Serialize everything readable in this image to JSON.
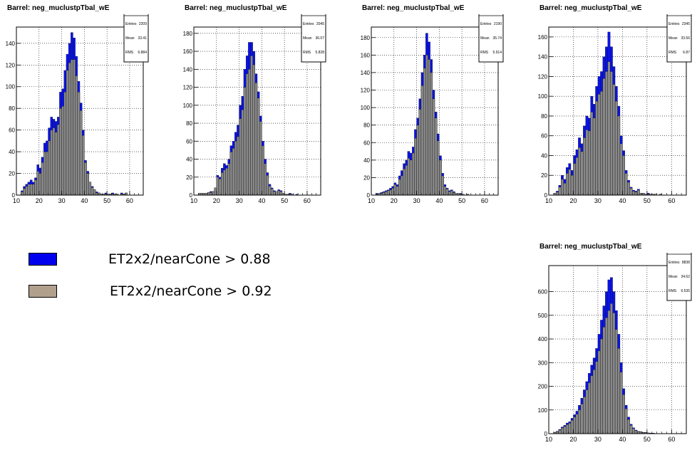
{
  "legend": {
    "items": [
      {
        "label": "ET2x2/nearCone > 0.88",
        "color": "#0000ee"
      },
      {
        "label": "ET2x2/nearCone > 0.92",
        "color": "#b0a08c"
      }
    ]
  },
  "colors": {
    "blue_fill": "#0a14e6",
    "gray_fill": "#888888",
    "frame": "#000000",
    "grid": "#000000"
  },
  "chart_data": [
    {
      "type": "bar",
      "title": "Barrel: neg_muclustpTbal_wE",
      "stats": {
        "name": "neg_muclustpTbal_wE",
        "entries_label": "Entries",
        "entries": "2209",
        "mean_label": "Mean",
        "mean": "33.41",
        "rms_label": "RMS",
        "rms": "6.884"
      },
      "xlim": [
        10,
        66
      ],
      "ylim": [
        0,
        155
      ],
      "xticks": [
        "10",
        "20",
        "30",
        "40",
        "50",
        "60"
      ],
      "yticks": [
        "0",
        "20",
        "40",
        "60",
        "80",
        "100",
        "120",
        "140"
      ],
      "bin_width": 1,
      "x_start": 12,
      "series": [
        {
          "values": [
            4,
            8,
            10,
            12,
            14,
            12,
            16,
            28,
            25,
            35,
            48,
            50,
            62,
            72,
            70,
            68,
            72,
            95,
            98,
            115,
            130,
            140,
            150,
            145,
            128,
            105,
            85,
            60,
            32,
            22,
            12,
            8,
            5,
            3,
            2,
            1,
            1,
            2,
            1,
            1,
            2,
            1,
            1,
            0,
            2,
            1,
            2
          ]
        },
        {
          "values": [
            3,
            6,
            8,
            10,
            10,
            10,
            14,
            22,
            20,
            30,
            40,
            40,
            50,
            60,
            62,
            58,
            65,
            80,
            82,
            95,
            115,
            122,
            125,
            125,
            110,
            95,
            78,
            55,
            30,
            20,
            12,
            7,
            5,
            2,
            2,
            1,
            1,
            1,
            1,
            1,
            1,
            1,
            1,
            0,
            1,
            1,
            2
          ]
        }
      ]
    },
    {
      "type": "bar",
      "title": "Barrel: neg_muclustpTbal_wE",
      "stats": {
        "name": "neg_muclustpTbal_wE",
        "entries_label": "Entries",
        "entries": "2045",
        "mean_label": "Mean",
        "mean": "36.07",
        "rms_label": "RMS",
        "rms": "5.828"
      },
      "xlim": [
        10,
        66
      ],
      "ylim": [
        0,
        187
      ],
      "xticks": [
        "10",
        "20",
        "30",
        "40",
        "50",
        "60"
      ],
      "yticks": [
        "0",
        "20",
        "40",
        "60",
        "80",
        "100",
        "120",
        "140",
        "160",
        "180"
      ],
      "bin_width": 1,
      "x_start": 12,
      "series": [
        {
          "values": [
            2,
            2,
            2,
            2,
            3,
            4,
            4,
            8,
            22,
            20,
            30,
            35,
            33,
            40,
            55,
            60,
            70,
            78,
            100,
            110,
            140,
            155,
            170,
            170,
            160,
            135,
            115,
            88,
            60,
            40,
            25,
            12,
            8,
            5,
            4,
            6,
            5,
            2,
            1,
            1,
            2,
            1,
            0,
            1,
            0,
            0,
            0
          ]
        },
        {
          "values": [
            2,
            2,
            2,
            2,
            3,
            3,
            4,
            8,
            20,
            18,
            25,
            28,
            30,
            35,
            48,
            52,
            60,
            65,
            85,
            95,
            120,
            135,
            140,
            155,
            145,
            125,
            108,
            82,
            55,
            35,
            22,
            10,
            7,
            4,
            4,
            5,
            4,
            2,
            1,
            1,
            1,
            1,
            0,
            0,
            0,
            0,
            0
          ]
        }
      ]
    },
    {
      "type": "bar",
      "title": "Barrel: neg_muclustpTbal_wE",
      "stats": {
        "name": "neg_muclustpTbal_wE",
        "entries_label": "Entries",
        "entries": "2190",
        "mean_label": "Mean",
        "mean": "35.74",
        "rms_label": "RMS",
        "rms": "5.914"
      },
      "xlim": [
        10,
        66
      ],
      "ylim": [
        0,
        192
      ],
      "xticks": [
        "10",
        "20",
        "30",
        "40",
        "50",
        "60"
      ],
      "yticks": [
        "0",
        "20",
        "40",
        "60",
        "80",
        "100",
        "120",
        "140",
        "160",
        "180"
      ],
      "bin_width": 1,
      "x_start": 12,
      "series": [
        {
          "values": [
            2,
            2,
            3,
            4,
            5,
            6,
            8,
            10,
            14,
            12,
            22,
            28,
            36,
            40,
            50,
            48,
            55,
            75,
            88,
            110,
            140,
            160,
            185,
            175,
            155,
            120,
            95,
            70,
            45,
            25,
            12,
            8,
            5,
            6,
            4,
            2,
            2,
            2,
            1,
            0,
            1,
            0,
            0,
            0,
            0,
            0,
            0
          ]
        },
        {
          "values": [
            1,
            2,
            2,
            3,
            4,
            5,
            6,
            8,
            12,
            10,
            18,
            22,
            30,
            34,
            42,
            40,
            48,
            65,
            80,
            98,
            125,
            145,
            160,
            155,
            140,
            110,
            88,
            62,
            40,
            22,
            10,
            7,
            4,
            5,
            3,
            2,
            2,
            1,
            1,
            0,
            1,
            0,
            0,
            0,
            0,
            0,
            0
          ]
        }
      ]
    },
    {
      "type": "bar",
      "title": "Barrel: neg_muclustpTbal_wE",
      "stats": {
        "name": "neg_muclustpTbal_wE",
        "entries_label": "Entries",
        "entries": "2345",
        "mean_label": "Mean",
        "mean": "33.56",
        "rms_label": "RMS",
        "rms": "6.87"
      },
      "xlim": [
        10,
        66
      ],
      "ylim": [
        0,
        170
      ],
      "xticks": [
        "10",
        "20",
        "30",
        "40",
        "50",
        "60"
      ],
      "yticks": [
        "0",
        "20",
        "40",
        "60",
        "80",
        "100",
        "120",
        "140",
        "160"
      ],
      "bin_width": 1,
      "x_start": 12,
      "series": [
        {
          "values": [
            2,
            4,
            10,
            20,
            16,
            28,
            32,
            25,
            40,
            46,
            58,
            52,
            70,
            80,
            78,
            100,
            92,
            110,
            120,
            125,
            140,
            150,
            165,
            150,
            130,
            110,
            90,
            60,
            45,
            25,
            15,
            8,
            5,
            4,
            6,
            2,
            2,
            1,
            2,
            1,
            1,
            1,
            0,
            1,
            0,
            0,
            0
          ]
        },
        {
          "values": [
            2,
            3,
            8,
            16,
            12,
            22,
            26,
            20,
            32,
            38,
            48,
            44,
            58,
            66,
            65,
            84,
            78,
            95,
            102,
            105,
            118,
            125,
            135,
            125,
            112,
            95,
            80,
            52,
            40,
            22,
            13,
            7,
            4,
            3,
            5,
            2,
            2,
            1,
            1,
            1,
            1,
            1,
            0,
            1,
            0,
            0,
            0
          ]
        }
      ]
    },
    {
      "type": "bar",
      "title": "Barrel: neg_muclustpTbal_wE",
      "stats": {
        "name": "neg_muclustpTbal_wE",
        "entries_label": "Entries",
        "entries": "8838",
        "mean_label": "Mean",
        "mean": "34.62",
        "rms_label": "RMS",
        "rms": "6.535"
      },
      "xlim": [
        10,
        66
      ],
      "ylim": [
        0,
        710
      ],
      "xticks": [
        "10",
        "20",
        "30",
        "40",
        "50",
        "60"
      ],
      "yticks": [
        "0",
        "100",
        "200",
        "300",
        "400",
        "500",
        "600"
      ],
      "bin_width": 1,
      "x_start": 12,
      "series": [
        {
          "values": [
            6,
            10,
            18,
            28,
            35,
            45,
            50,
            65,
            80,
            95,
            120,
            150,
            185,
            220,
            255,
            290,
            320,
            360,
            420,
            480,
            540,
            600,
            650,
            660,
            600,
            520,
            420,
            300,
            190,
            120,
            70,
            40,
            25,
            15,
            10,
            8,
            5,
            5,
            3,
            2,
            2,
            1,
            1,
            1,
            0,
            0,
            0
          ]
        },
        {
          "values": [
            5,
            8,
            15,
            24,
            30,
            38,
            44,
            56,
            70,
            82,
            100,
            125,
            155,
            185,
            215,
            245,
            270,
            305,
            350,
            400,
            450,
            490,
            520,
            550,
            510,
            440,
            360,
            260,
            165,
            105,
            60,
            35,
            22,
            13,
            9,
            7,
            4,
            4,
            3,
            2,
            2,
            1,
            1,
            1,
            0,
            0,
            0
          ]
        }
      ]
    }
  ]
}
